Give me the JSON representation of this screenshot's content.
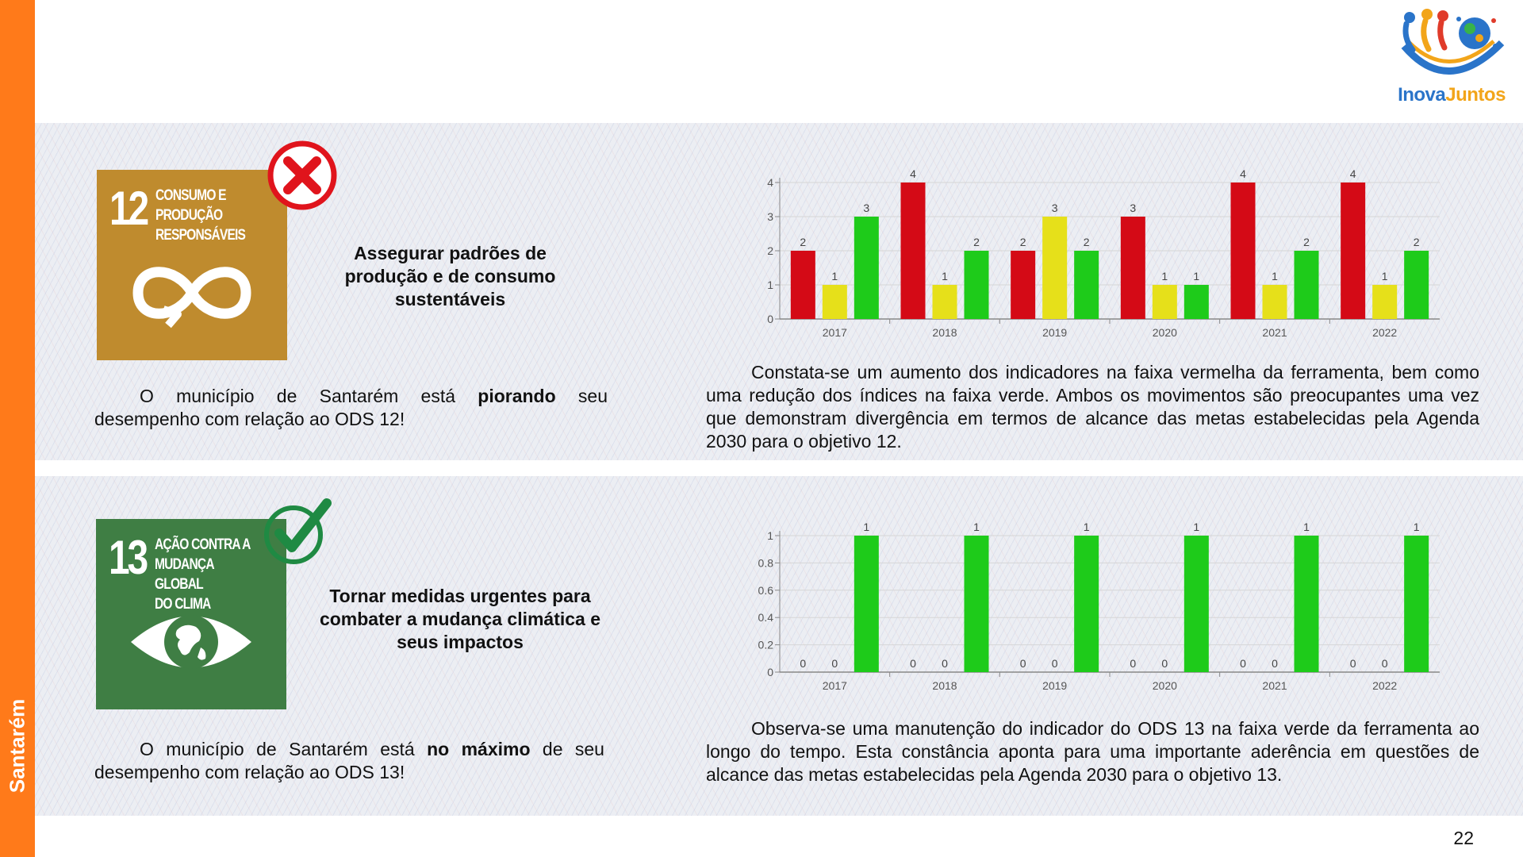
{
  "sidebar": {
    "label": "Santarém"
  },
  "logo": {
    "text_part1": "Inova",
    "text_part2": "Juntos"
  },
  "ods12": {
    "number": "12",
    "title": "CONSUMO E\nPRODUÇÃO\nRESPONSÁVEIS",
    "icon": "infinity-icon",
    "status_icon": "x-mark-icon",
    "goal": "Assegurar padrões de produção e de consumo sustentáveis",
    "status_text": {
      "before": "O município de Santarém está ",
      "emphasis": "piorando",
      "after": " seu desempenho com relação ao ODS 12!"
    },
    "description": "Constata-se um aumento dos indicadores na faixa vermelha da ferramenta, bem como uma redução dos índices na faixa verde. Ambos os movimentos são preocupantes uma vez que demonstram divergência em termos de alcance das metas estabelecidas pela Agenda 2030 para o objetivo 12."
  },
  "ods13": {
    "number": "13",
    "title": "AÇÃO CONTRA A\nMUDANÇA GLOBAL\nDO CLIMA",
    "icon": "eye-globe-icon",
    "status_icon": "check-mark-icon",
    "goal": "Tornar medidas urgentes para combater a mudança climática e seus impactos",
    "status_text": {
      "before": "O município de Santarém está ",
      "emphasis": "no máximo",
      "after": " de seu desempenho com relação ao ODS 13!"
    },
    "description": "Observa-se uma manutenção do indicador do ODS 13 na faixa verde da ferramenta ao longo do tempo. Esta constância aponta para uma importante aderência em questões de alcance das metas estabelecidas pela Agenda 2030 para o objetivo 13."
  },
  "colors": {
    "red": "#d40a16",
    "yellow": "#e6e01a",
    "green": "#1ecb1a",
    "orange": "#ff7a1a"
  },
  "page_number": "22",
  "chart_data": [
    {
      "type": "bar",
      "categories": [
        "2017",
        "2018",
        "2019",
        "2020",
        "2021",
        "2022"
      ],
      "series": [
        {
          "values": [
            2,
            4,
            2,
            3,
            4,
            4
          ],
          "color": "#d40a16"
        },
        {
          "values": [
            1,
            1,
            3,
            1,
            1,
            1
          ],
          "color": "#e6e01a"
        },
        {
          "values": [
            3,
            2,
            2,
            1,
            2,
            2
          ],
          "color": "#1ecb1a"
        }
      ],
      "yticks": [
        "0",
        "1",
        "2",
        "3",
        "4"
      ],
      "ylim": [
        0,
        4
      ],
      "grid": true
    },
    {
      "type": "bar",
      "categories": [
        "2017",
        "2018",
        "2019",
        "2020",
        "2021",
        "2022"
      ],
      "series": [
        {
          "values": [
            0,
            0,
            0,
            0,
            0,
            0
          ],
          "color": "#d40a16"
        },
        {
          "values": [
            0,
            0,
            0,
            0,
            0,
            0
          ],
          "color": "#e6e01a"
        },
        {
          "values": [
            1,
            1,
            1,
            1,
            1,
            1
          ],
          "color": "#1ecb1a"
        }
      ],
      "yticks": [
        "0",
        "0.2",
        "0.4",
        "0.6",
        "0.8",
        "1"
      ],
      "ylim": [
        0,
        1
      ],
      "grid": true
    }
  ]
}
